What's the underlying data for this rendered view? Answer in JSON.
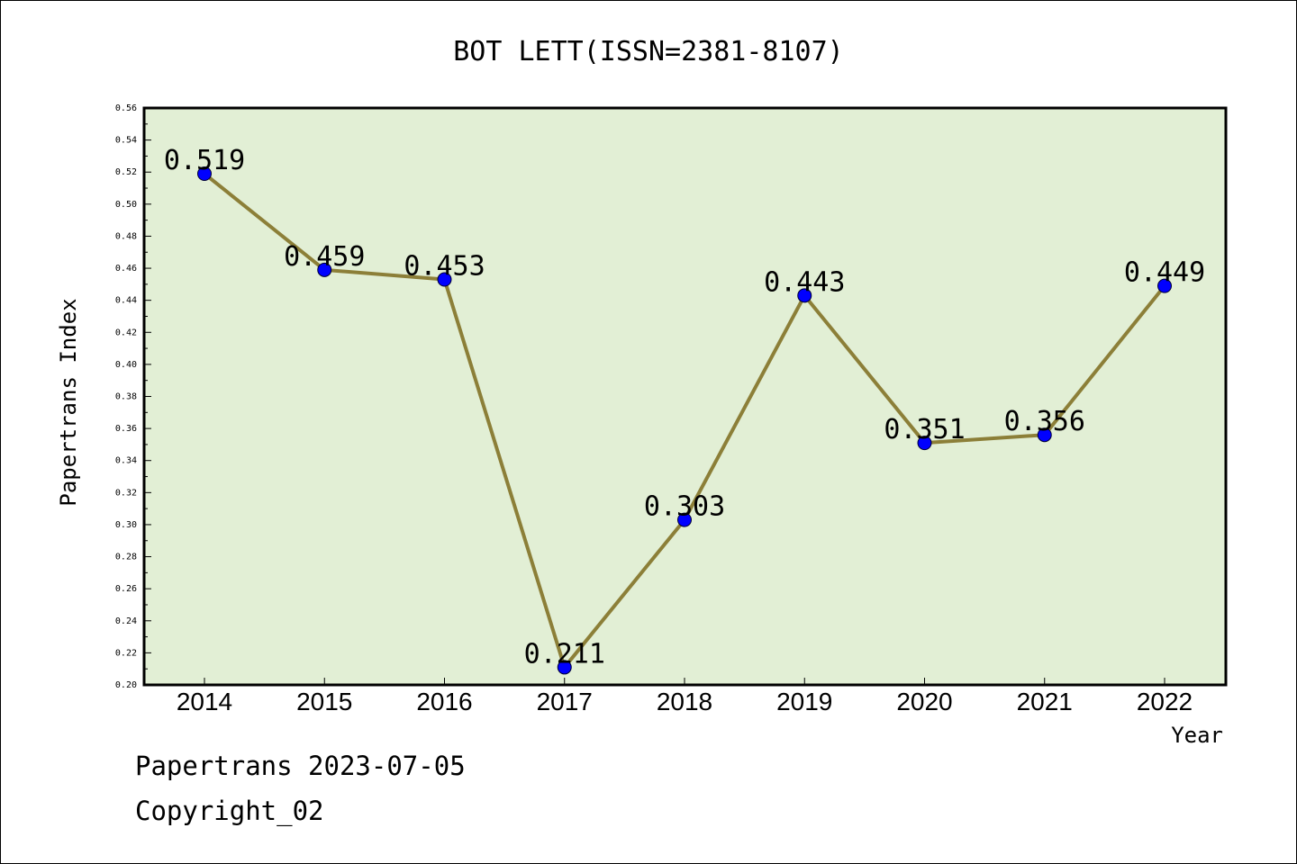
{
  "chart_data": {
    "type": "line",
    "title": "BOT LETT(ISSN=2381-8107)",
    "xlabel": "Year",
    "ylabel": "Papertrans Index",
    "categories": [
      "2014",
      "2015",
      "2016",
      "2017",
      "2018",
      "2019",
      "2020",
      "2021",
      "2022"
    ],
    "series": [
      {
        "values": [
          0.519,
          0.459,
          0.453,
          0.211,
          0.303,
          0.443,
          0.351,
          0.356,
          0.449
        ],
        "data_labels": [
          "0.519",
          "0.459",
          "0.453",
          "0.211",
          "0.303",
          "0.443",
          "0.351",
          "0.356",
          "0.449"
        ]
      }
    ],
    "ylim": [
      0.2,
      0.56
    ],
    "y_ticks": [
      "0.20",
      "0.22",
      "0.24",
      "0.26",
      "0.28",
      "0.30",
      "0.32",
      "0.34",
      "0.36",
      "0.38",
      "0.40",
      "0.42",
      "0.44",
      "0.46",
      "0.48",
      "0.50",
      "0.52",
      "0.54",
      "0.56"
    ],
    "grid": false,
    "colors": {
      "plot_background": "#e2efd5",
      "line": "#8c7f38",
      "marker": "#0000ff"
    }
  },
  "footer": {
    "date_line": "Papertrans 2023-07-05",
    "copyright_line": "Copyright_02"
  }
}
